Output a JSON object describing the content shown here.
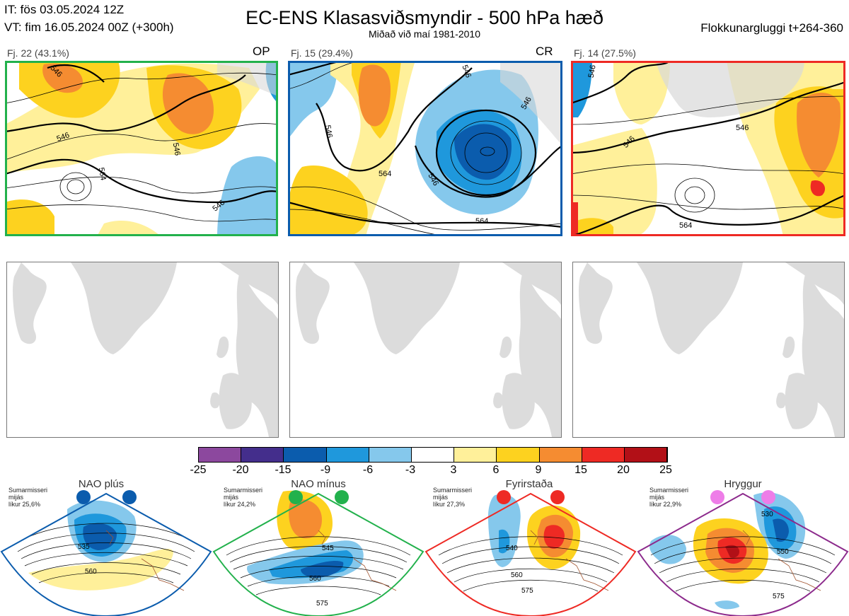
{
  "header": {
    "it": "IT: fös 03.05.2024 12Z",
    "vt": "VT: fim 16.05.2024 00Z  (+300h)",
    "title": "EC-ENS Klasasviðsmyndir - 500 hPa hæð",
    "subtitle": "Miðað við maí 1981-2010",
    "window": "Flokkunargluggi t+264-360"
  },
  "clusters": [
    {
      "label": "Fj. 22 (43.1%)",
      "tag": "OP",
      "border": "#22b14c",
      "contours": [
        "546",
        "546",
        "564",
        "546",
        "546"
      ]
    },
    {
      "label": "Fj. 15 (29.4%)",
      "tag": "CR",
      "border": "#0b5cad",
      "contours": [
        "546",
        "546",
        "564",
        "546",
        "546",
        "564"
      ]
    },
    {
      "label": "Fj. 14 (27.5%)",
      "tag": "",
      "border": "#ee2a24",
      "contours": [
        "546",
        "546",
        "546",
        "564"
      ]
    }
  ],
  "colorbar": {
    "ticks": [
      "-25",
      "-20",
      "-15",
      "-9",
      "-6",
      "-3",
      "3",
      "6",
      "9",
      "15",
      "20",
      "25"
    ],
    "colors": [
      "#8c489e",
      "#442e8c",
      "#0b5cad",
      "#1f98dc",
      "#85c8ec",
      "#ffffff",
      "#fff09a",
      "#fdd21f",
      "#f58c31",
      "#ee2a24",
      "#b21017"
    ]
  },
  "regimes": [
    {
      "name": "NAO plús",
      "info": [
        "Sumarmisseri",
        "mijás",
        "líkur 25,6%"
      ],
      "color": "#0b5cad",
      "dot": "#0b5cad",
      "contours": [
        "535",
        "560"
      ]
    },
    {
      "name": "NAO mínus",
      "info": [
        "Sumarmisseri",
        "mijás",
        "líkur 24,2%"
      ],
      "color": "#22b14c",
      "dot": "#22b14c",
      "contours": [
        "545",
        "560",
        "575"
      ]
    },
    {
      "name": "Fyrirstaða",
      "info": [
        "Sumarmisseri",
        "mijás",
        "líkur 27,3%"
      ],
      "color": "#ee2a24",
      "dot": "#ee2a24",
      "contours": [
        "540",
        "560",
        "575"
      ]
    },
    {
      "name": "Hryggur",
      "info": [
        "Sumarmisseri",
        "mijás",
        "líkur 22,9%"
      ],
      "color": "#8c2a8c",
      "dot": "#ee7de8",
      "contours": [
        "530",
        "550",
        "575"
      ]
    }
  ]
}
